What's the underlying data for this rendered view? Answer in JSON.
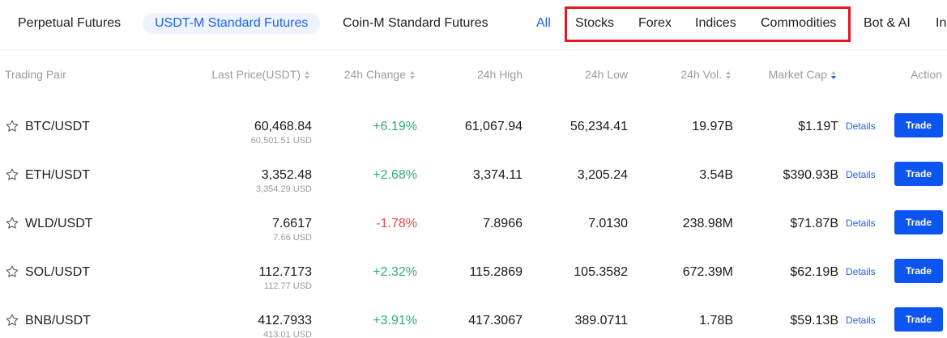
{
  "nav": {
    "tabs": [
      {
        "label": "Perpetual Futures"
      },
      {
        "label": "USDT-M Standard Futures"
      },
      {
        "label": "Coin-M Standard Futures"
      }
    ],
    "filters": [
      {
        "label": "All"
      },
      {
        "label": "Stocks"
      },
      {
        "label": "Forex"
      },
      {
        "label": "Indices"
      },
      {
        "label": "Commodities"
      },
      {
        "label": "Bot & AI"
      },
      {
        "label": "In"
      }
    ],
    "active_tab": "USDT-M Standard Futures",
    "active_filter": "All",
    "highlight_color": "#e8141e"
  },
  "table": {
    "columns": {
      "pair": "Trading Pair",
      "last_price": "Last Price(USDT)",
      "change": "24h Change",
      "high": "24h High",
      "low": "24h Low",
      "volume": "24h Vol.",
      "market_cap": "Market Cap",
      "action": "Action"
    },
    "sorted_by": "Market Cap",
    "sort_direction": "descending",
    "rows": [
      {
        "pair": "BTC/USDT",
        "price": "60,468.84",
        "price_usd": "60,501.51 USD",
        "change": "+6.19%",
        "direction": "up",
        "high": "61,067.94",
        "low": "56,234.41",
        "volume": "19.97B",
        "market_cap": "$1.19T",
        "details": "Details",
        "trade": "Trade"
      },
      {
        "pair": "ETH/USDT",
        "price": "3,352.48",
        "price_usd": "3,354.29 USD",
        "change": "+2.68%",
        "direction": "up",
        "high": "3,374.11",
        "low": "3,205.24",
        "volume": "3.54B",
        "market_cap": "$390.93B",
        "details": "Details",
        "trade": "Trade"
      },
      {
        "pair": "WLD/USDT",
        "price": "7.6617",
        "price_usd": "7.66 USD",
        "change": "-1.78%",
        "direction": "down",
        "high": "7.8966",
        "low": "7.0130",
        "volume": "238.98M",
        "market_cap": "$71.87B",
        "details": "Details",
        "trade": "Trade"
      },
      {
        "pair": "SOL/USDT",
        "price": "112.7173",
        "price_usd": "112.77 USD",
        "change": "+2.32%",
        "direction": "up",
        "high": "115.2869",
        "low": "105.3582",
        "volume": "672.39M",
        "market_cap": "$62.19B",
        "details": "Details",
        "trade": "Trade"
      },
      {
        "pair": "BNB/USDT",
        "price": "412.7933",
        "price_usd": "413.01 USD",
        "change": "+3.91%",
        "direction": "up",
        "high": "417.3067",
        "low": "389.0711",
        "volume": "1.78B",
        "market_cap": "$59.13B",
        "details": "Details",
        "trade": "Trade"
      }
    ]
  },
  "icons": {
    "star": "star-outline-icon",
    "sort": "sort-arrows-icon"
  },
  "colors": {
    "accent": "#1f63e9",
    "positive": "#2eae79",
    "negative": "#e64646",
    "trade_button": "#0c55f0"
  }
}
